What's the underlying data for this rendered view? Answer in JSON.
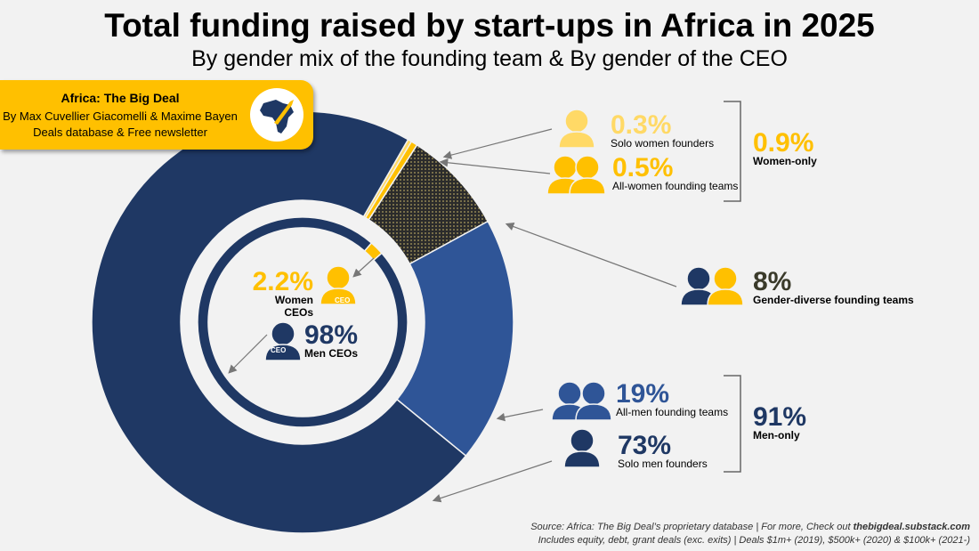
{
  "header": {
    "title": "Total funding raised by start-ups in Africa in 2025",
    "subtitle": "By gender mix of the founding team & By gender of the CEO"
  },
  "banner": {
    "name": "Africa: The Big Deal",
    "authors": "By Max Cuvellier Giacomelli & Maxime Bayen",
    "tagline": "Deals database & Free newsletter"
  },
  "footer": {
    "source_prefix": "Source: Africa: The Big Deal’s proprietary database | For more, Check out ",
    "source_link": "thebigdeal.substack.com",
    "notes": "Includes equity, debt, grant deals (exc. exits) | Deals $1m+ (2019), $500k+ (2020) & $100k+ (2021-)"
  },
  "colors": {
    "navy": "#1f3864",
    "blue": "#2f5597",
    "yellow": "#ffc000",
    "light_yellow": "#ffd966",
    "diverse": "#3a3a2a"
  },
  "chart_data": [
    {
      "type": "pie",
      "subtype": "donut",
      "title": "By gender mix of the founding team",
      "unit": "%",
      "slices": [
        {
          "label": "Solo women founders",
          "value": 0.3,
          "color": "#ffd966"
        },
        {
          "label": "All-women founding teams",
          "value": 0.5,
          "color": "#ffc000"
        },
        {
          "label": "Gender-diverse founding teams",
          "value": 8,
          "color": "#3a3a2a"
        },
        {
          "label": "All-men founding teams",
          "value": 19,
          "color": "#2f5597"
        },
        {
          "label": "Solo men founders",
          "value": 73,
          "color": "#1f3864"
        }
      ],
      "groups": [
        {
          "label": "Women-only",
          "value": 0.9
        },
        {
          "label": "Men-only",
          "value": 91
        }
      ],
      "display": {
        "solo_women": "0.3%",
        "all_women": "0.5%",
        "women_only": "0.9%",
        "diverse": "8%",
        "all_men": "19%",
        "solo_men": "73%",
        "men_only": "91%"
      }
    },
    {
      "type": "pie",
      "subtype": "donut",
      "title": "By gender of the CEO",
      "unit": "%",
      "slices": [
        {
          "label": "Women CEOs",
          "value": 2.2,
          "color": "#ffc000"
        },
        {
          "label": "Men CEOs",
          "value": 98,
          "color": "#1f3864"
        }
      ],
      "display": {
        "women": "2.2%",
        "men": "98%"
      },
      "icon_badge": "CEO"
    }
  ]
}
